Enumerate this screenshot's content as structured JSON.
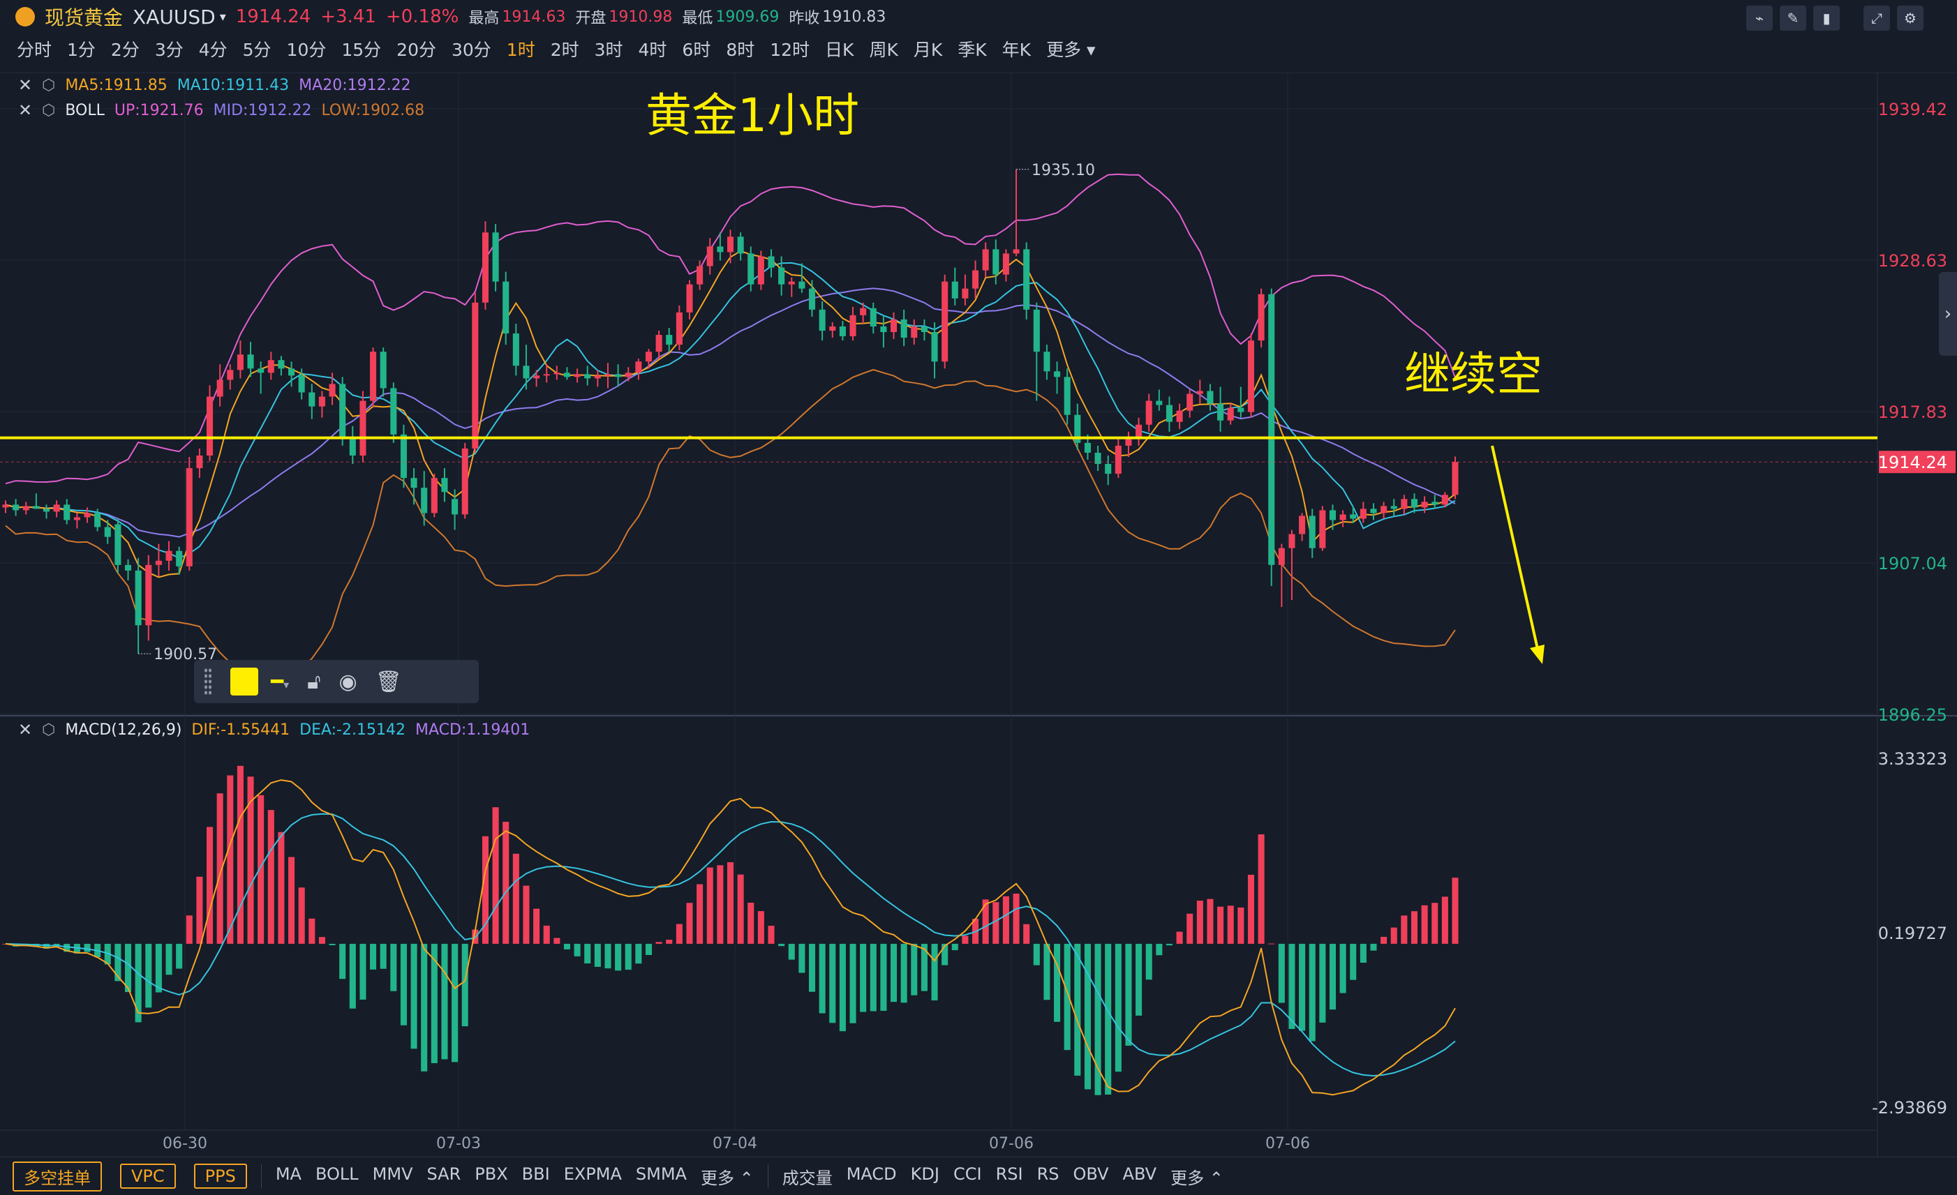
{
  "header": {
    "instrument_cn": "现货黄金",
    "symbol": "XAUUSD",
    "price": "1914.24",
    "change": "+3.41",
    "change_pct": "+0.18%",
    "high_label": "最高",
    "high": "1914.63",
    "open_label": "开盘",
    "open": "1910.98",
    "low_label": "最低",
    "low": "1909.69",
    "prev_label": "昨收",
    "prev": "1910.83"
  },
  "periods": [
    "分时",
    "1分",
    "2分",
    "3分",
    "4分",
    "5分",
    "10分",
    "15分",
    "20分",
    "30分",
    "1时",
    "2时",
    "3时",
    "4时",
    "6时",
    "8时",
    "12时",
    "日K",
    "周K",
    "月K",
    "季K",
    "年K",
    "更多"
  ],
  "active_period": "1时",
  "main_legend": {
    "ma5": "MA5:1911.85",
    "ma10": "MA10:1911.43",
    "ma20": "MA20:1912.22",
    "boll": "BOLL",
    "up": "UP:1921.76",
    "mid": "MID:1912.22",
    "low": "LOW:1902.68"
  },
  "annotations": {
    "title": "黄金1小时",
    "note": "继续空",
    "high_mark": "1935.10",
    "low_mark": "1900.57"
  },
  "price_axis": [
    "1939.42",
    "1928.63",
    "1917.83",
    "1907.04",
    "1896.25"
  ],
  "current_price_tag": "1914.24",
  "macd_legend": {
    "name": "MACD(12,26,9)",
    "dif": "DIF:-1.55441",
    "dea": "DEA:-2.15142",
    "macd": "MACD:1.19401"
  },
  "macd_axis": [
    "3.33323",
    "0.19727",
    "-2.93869"
  ],
  "dates": [
    "06-30",
    "07-03",
    "07-04",
    "07-06",
    "07-06"
  ],
  "bottom": {
    "pills": [
      "多空挂单",
      "VPC",
      "PPS"
    ],
    "main_indicators": [
      "MA",
      "BOLL",
      "MMV",
      "SAR",
      "PBX",
      "BBI",
      "EXPMA",
      "SMMA",
      "更多"
    ],
    "sub_indicators": [
      "成交量",
      "MACD",
      "KDJ",
      "CCI",
      "RSI",
      "RS",
      "OBV",
      "ABV",
      "更多"
    ]
  },
  "colors": {
    "up": "#f0405a",
    "down": "#22b48a",
    "ma5": "#f5a623",
    "ma10": "#35c4e0",
    "ma20": "#8f7cf0",
    "boll_up": "#e15fd0",
    "boll_low": "#d0782e",
    "annotation": "#ffee00"
  },
  "chart_data": {
    "type": "candlestick",
    "price_range": [
      1896.25,
      1942.0
    ],
    "candles": [
      [
        1911,
        1911.5,
        1910.6,
        1911.2
      ],
      [
        1911.2,
        1911.6,
        1910.4,
        1910.8
      ],
      [
        1910.8,
        1911.4,
        1910.5,
        1911.1
      ],
      [
        1911.1,
        1912,
        1910.9,
        1910.9
      ],
      [
        1910.9,
        1911.2,
        1910.2,
        1910.7
      ],
      [
        1910.7,
        1911.5,
        1910.3,
        1911.2
      ],
      [
        1911.2,
        1911.6,
        1909.8,
        1910.1
      ],
      [
        1910.1,
        1910.6,
        1909.5,
        1910.3
      ],
      [
        1910.3,
        1911.0,
        1909.9,
        1910.6
      ],
      [
        1910.6,
        1910.9,
        1909.3,
        1909.6
      ],
      [
        1909.6,
        1910.1,
        1908.4,
        1908.9
      ],
      [
        1909.8,
        1910.2,
        1906.3,
        1906.9
      ],
      [
        1906.9,
        1907.3,
        1905.8,
        1906.5
      ],
      [
        1906.5,
        1907.4,
        1900.57,
        1902.6
      ],
      [
        1902.6,
        1907.6,
        1901.5,
        1906.9
      ],
      [
        1906.9,
        1908.4,
        1906.1,
        1907.2
      ],
      [
        1907.2,
        1908.6,
        1906.5,
        1907.9
      ],
      [
        1907.9,
        1908.2,
        1906.2,
        1906.8
      ],
      [
        1906.8,
        1914.6,
        1906.5,
        1913.8
      ],
      [
        1913.8,
        1915.2,
        1913.1,
        1914.7
      ],
      [
        1914.7,
        1919.7,
        1914.3,
        1918.9
      ],
      [
        1918.9,
        1921.2,
        1918.2,
        1920.1
      ],
      [
        1920.1,
        1921.2,
        1919.4,
        1920.8
      ],
      [
        1920.8,
        1922.9,
        1920.2,
        1921.9
      ],
      [
        1921.9,
        1922.8,
        1920.3,
        1920.9
      ],
      [
        1920.9,
        1921.4,
        1919.1,
        1920.6
      ],
      [
        1920.6,
        1922.1,
        1920.1,
        1921.5
      ],
      [
        1921.5,
        1921.8,
        1920.4,
        1920.9
      ],
      [
        1920.9,
        1921.4,
        1919.6,
        1920.4
      ],
      [
        1920.4,
        1920.9,
        1918.7,
        1919.2
      ],
      [
        1919.2,
        1919.8,
        1917.3,
        1918.2
      ],
      [
        1918.2,
        1919.3,
        1917.4,
        1918.9
      ],
      [
        1918.9,
        1920.6,
        1918.3,
        1919.8
      ],
      [
        1919.8,
        1920.3,
        1915.4,
        1915.9
      ],
      [
        1915.9,
        1916.8,
        1914.1,
        1914.7
      ],
      [
        1914.7,
        1919.3,
        1914.2,
        1918.6
      ],
      [
        1918.6,
        1922.4,
        1918.1,
        1922.1
      ],
      [
        1922.1,
        1922.4,
        1918.9,
        1919.5
      ],
      [
        1919.5,
        1919.9,
        1915.6,
        1916.2
      ],
      [
        1916.2,
        1916.9,
        1912.4,
        1913.1
      ],
      [
        1913.1,
        1913.8,
        1911.2,
        1912.4
      ],
      [
        1912.4,
        1913.6,
        1909.7,
        1910.6
      ],
      [
        1910.6,
        1913.4,
        1910.3,
        1913.1
      ],
      [
        1913.1,
        1913.8,
        1911.4,
        1912.1
      ],
      [
        1911.6,
        1912.3,
        1909.4,
        1910.5
      ],
      [
        1910.5,
        1915.6,
        1910.2,
        1915.2
      ],
      [
        1915.2,
        1926.3,
        1914.9,
        1925.6
      ],
      [
        1925.6,
        1931.4,
        1925.1,
        1930.6
      ],
      [
        1930.6,
        1931.2,
        1926.4,
        1927.1
      ],
      [
        1927.1,
        1927.8,
        1922.6,
        1923.4
      ],
      [
        1923.4,
        1924.1,
        1920.4,
        1921.1
      ],
      [
        1921.1,
        1922.6,
        1919.4,
        1920.2
      ],
      [
        1920.2,
        1920.8,
        1919.6,
        1920.4
      ],
      [
        1920.4,
        1921.2,
        1919.9,
        1920.5
      ],
      [
        1920.5,
        1921.1,
        1920.1,
        1920.6
      ],
      [
        1920.6,
        1921.0,
        1920.1,
        1920.3
      ],
      [
        1920.3,
        1920.9,
        1919.9,
        1920.5
      ],
      [
        1920.5,
        1921.1,
        1919.7,
        1920.2
      ],
      [
        1920.2,
        1920.8,
        1919.6,
        1920.4
      ],
      [
        1920.4,
        1921.3,
        1919.5,
        1920.5
      ],
      [
        1920.5,
        1921.2,
        1919.6,
        1920.3
      ],
      [
        1920.3,
        1921.0,
        1920.0,
        1920.6
      ],
      [
        1920.6,
        1921.6,
        1920.1,
        1921.4
      ],
      [
        1921.4,
        1922.3,
        1920.9,
        1922.1
      ],
      [
        1922.1,
        1923.6,
        1921.6,
        1923.3
      ],
      [
        1923.3,
        1923.8,
        1922.1,
        1922.6
      ],
      [
        1922.6,
        1925.4,
        1922.2,
        1924.9
      ],
      [
        1924.9,
        1927.2,
        1924.4,
        1926.9
      ],
      [
        1926.9,
        1928.6,
        1926.5,
        1928.2
      ],
      [
        1928.2,
        1930.2,
        1927.6,
        1929.6
      ],
      [
        1929.6,
        1930.6,
        1928.6,
        1929.2
      ],
      [
        1929.2,
        1930.8,
        1928.4,
        1930.3
      ],
      [
        1930.3,
        1930.6,
        1928.6,
        1929.1
      ],
      [
        1929.1,
        1929.6,
        1926.4,
        1926.9
      ],
      [
        1926.9,
        1929.3,
        1926.5,
        1928.9
      ],
      [
        1928.9,
        1929.4,
        1927.4,
        1928.1
      ],
      [
        1928.1,
        1928.9,
        1926.1,
        1926.9
      ],
      [
        1926.9,
        1927.4,
        1926.0,
        1927.1
      ],
      [
        1927.1,
        1928.4,
        1926.3,
        1926.6
      ],
      [
        1926.6,
        1927.2,
        1924.6,
        1925.1
      ],
      [
        1925.1,
        1925.7,
        1922.9,
        1923.6
      ],
      [
        1923.6,
        1924.2,
        1923.1,
        1923.9
      ],
      [
        1923.9,
        1924.3,
        1922.9,
        1923.2
      ],
      [
        1923.2,
        1925.3,
        1922.9,
        1924.7
      ],
      [
        1924.7,
        1925.6,
        1924.1,
        1925.2
      ],
      [
        1925.2,
        1925.6,
        1923.4,
        1923.9
      ],
      [
        1923.9,
        1924.7,
        1922.4,
        1923.5
      ],
      [
        1923.5,
        1924.9,
        1923.0,
        1924.4
      ],
      [
        1924.4,
        1925.1,
        1922.5,
        1923.1
      ],
      [
        1923.1,
        1924.4,
        1922.6,
        1923.9
      ],
      [
        1923.9,
        1924.4,
        1922.9,
        1923.5
      ],
      [
        1923.5,
        1924.2,
        1920.2,
        1921.4
      ],
      [
        1921.4,
        1927.6,
        1920.9,
        1927.1
      ],
      [
        1927.1,
        1928.1,
        1925.4,
        1925.9
      ],
      [
        1925.9,
        1927.6,
        1925.4,
        1926.6
      ],
      [
        1926.6,
        1928.6,
        1925.9,
        1927.9
      ],
      [
        1927.9,
        1929.9,
        1927.4,
        1929.4
      ],
      [
        1929.4,
        1930.1,
        1926.9,
        1927.6
      ],
      [
        1927.6,
        1929.4,
        1927.1,
        1929.1
      ],
      [
        1929.1,
        1935.1,
        1928.9,
        1929.4
      ],
      [
        1929.4,
        1929.9,
        1924.4,
        1925.1
      ],
      [
        1925.1,
        1925.6,
        1918.6,
        1922.1
      ],
      [
        1922.1,
        1922.6,
        1920.1,
        1920.7
      ],
      [
        1920.7,
        1921.4,
        1919.1,
        1920.3
      ],
      [
        1920.3,
        1920.9,
        1916.9,
        1917.6
      ],
      [
        1917.6,
        1918.4,
        1915.1,
        1915.6
      ],
      [
        1915.6,
        1916.2,
        1914.4,
        1914.9
      ],
      [
        1914.9,
        1915.4,
        1913.6,
        1914.1
      ],
      [
        1914.1,
        1914.7,
        1912.6,
        1913.4
      ],
      [
        1913.4,
        1915.9,
        1913.1,
        1915.4
      ],
      [
        1915.4,
        1916.4,
        1914.6,
        1915.9
      ],
      [
        1915.9,
        1917.4,
        1915.4,
        1916.9
      ],
      [
        1916.9,
        1919.1,
        1916.4,
        1918.6
      ],
      [
        1918.6,
        1919.4,
        1917.9,
        1918.3
      ],
      [
        1918.3,
        1918.9,
        1916.4,
        1917.1
      ],
      [
        1917.1,
        1918.4,
        1916.6,
        1917.9
      ],
      [
        1917.9,
        1919.4,
        1917.4,
        1919.1
      ],
      [
        1919.1,
        1920.1,
        1918.4,
        1919.3
      ],
      [
        1919.3,
        1919.8,
        1917.9,
        1918.4
      ],
      [
        1918.4,
        1919.6,
        1916.4,
        1917.2
      ],
      [
        1917.2,
        1918.4,
        1916.9,
        1918.1
      ],
      [
        1918.1,
        1919.6,
        1917.4,
        1917.8
      ],
      [
        1917.8,
        1923.4,
        1917.4,
        1922.9
      ],
      [
        1922.9,
        1926.6,
        1922.4,
        1926.2
      ],
      [
        1926.2,
        1926.6,
        1905.4,
        1906.9
      ],
      [
        1906.9,
        1908.4,
        1903.9,
        1908.1
      ],
      [
        1908.1,
        1909.4,
        1904.4,
        1909.1
      ],
      [
        1909.1,
        1910.6,
        1908.6,
        1910.4
      ],
      [
        1910.4,
        1910.9,
        1907.4,
        1908.1
      ],
      [
        1908.1,
        1911.1,
        1907.9,
        1910.8
      ],
      [
        1910.8,
        1911.2,
        1909.4,
        1910.1
      ],
      [
        1910.1,
        1910.8,
        1909.6,
        1910.5
      ],
      [
        1910.5,
        1911.1,
        1909.9,
        1910.2
      ],
      [
        1910.2,
        1911.4,
        1909.9,
        1910.9
      ],
      [
        1910.9,
        1911.3,
        1910.1,
        1910.6
      ],
      [
        1910.6,
        1911.4,
        1910.2,
        1911.1
      ],
      [
        1911.1,
        1911.6,
        1910.4,
        1910.9
      ],
      [
        1910.9,
        1911.9,
        1910.5,
        1911.6
      ],
      [
        1911.6,
        1912.0,
        1910.6,
        1911.0
      ],
      [
        1911.0,
        1911.8,
        1910.6,
        1911.4
      ],
      [
        1911.4,
        1911.9,
        1910.9,
        1911.2
      ],
      [
        1911.2,
        1912.1,
        1911.0,
        1911.9
      ],
      [
        1911.9,
        1914.63,
        1911.6,
        1914.24
      ]
    ],
    "macd_range": [
      -3.3,
      3.9
    ]
  }
}
